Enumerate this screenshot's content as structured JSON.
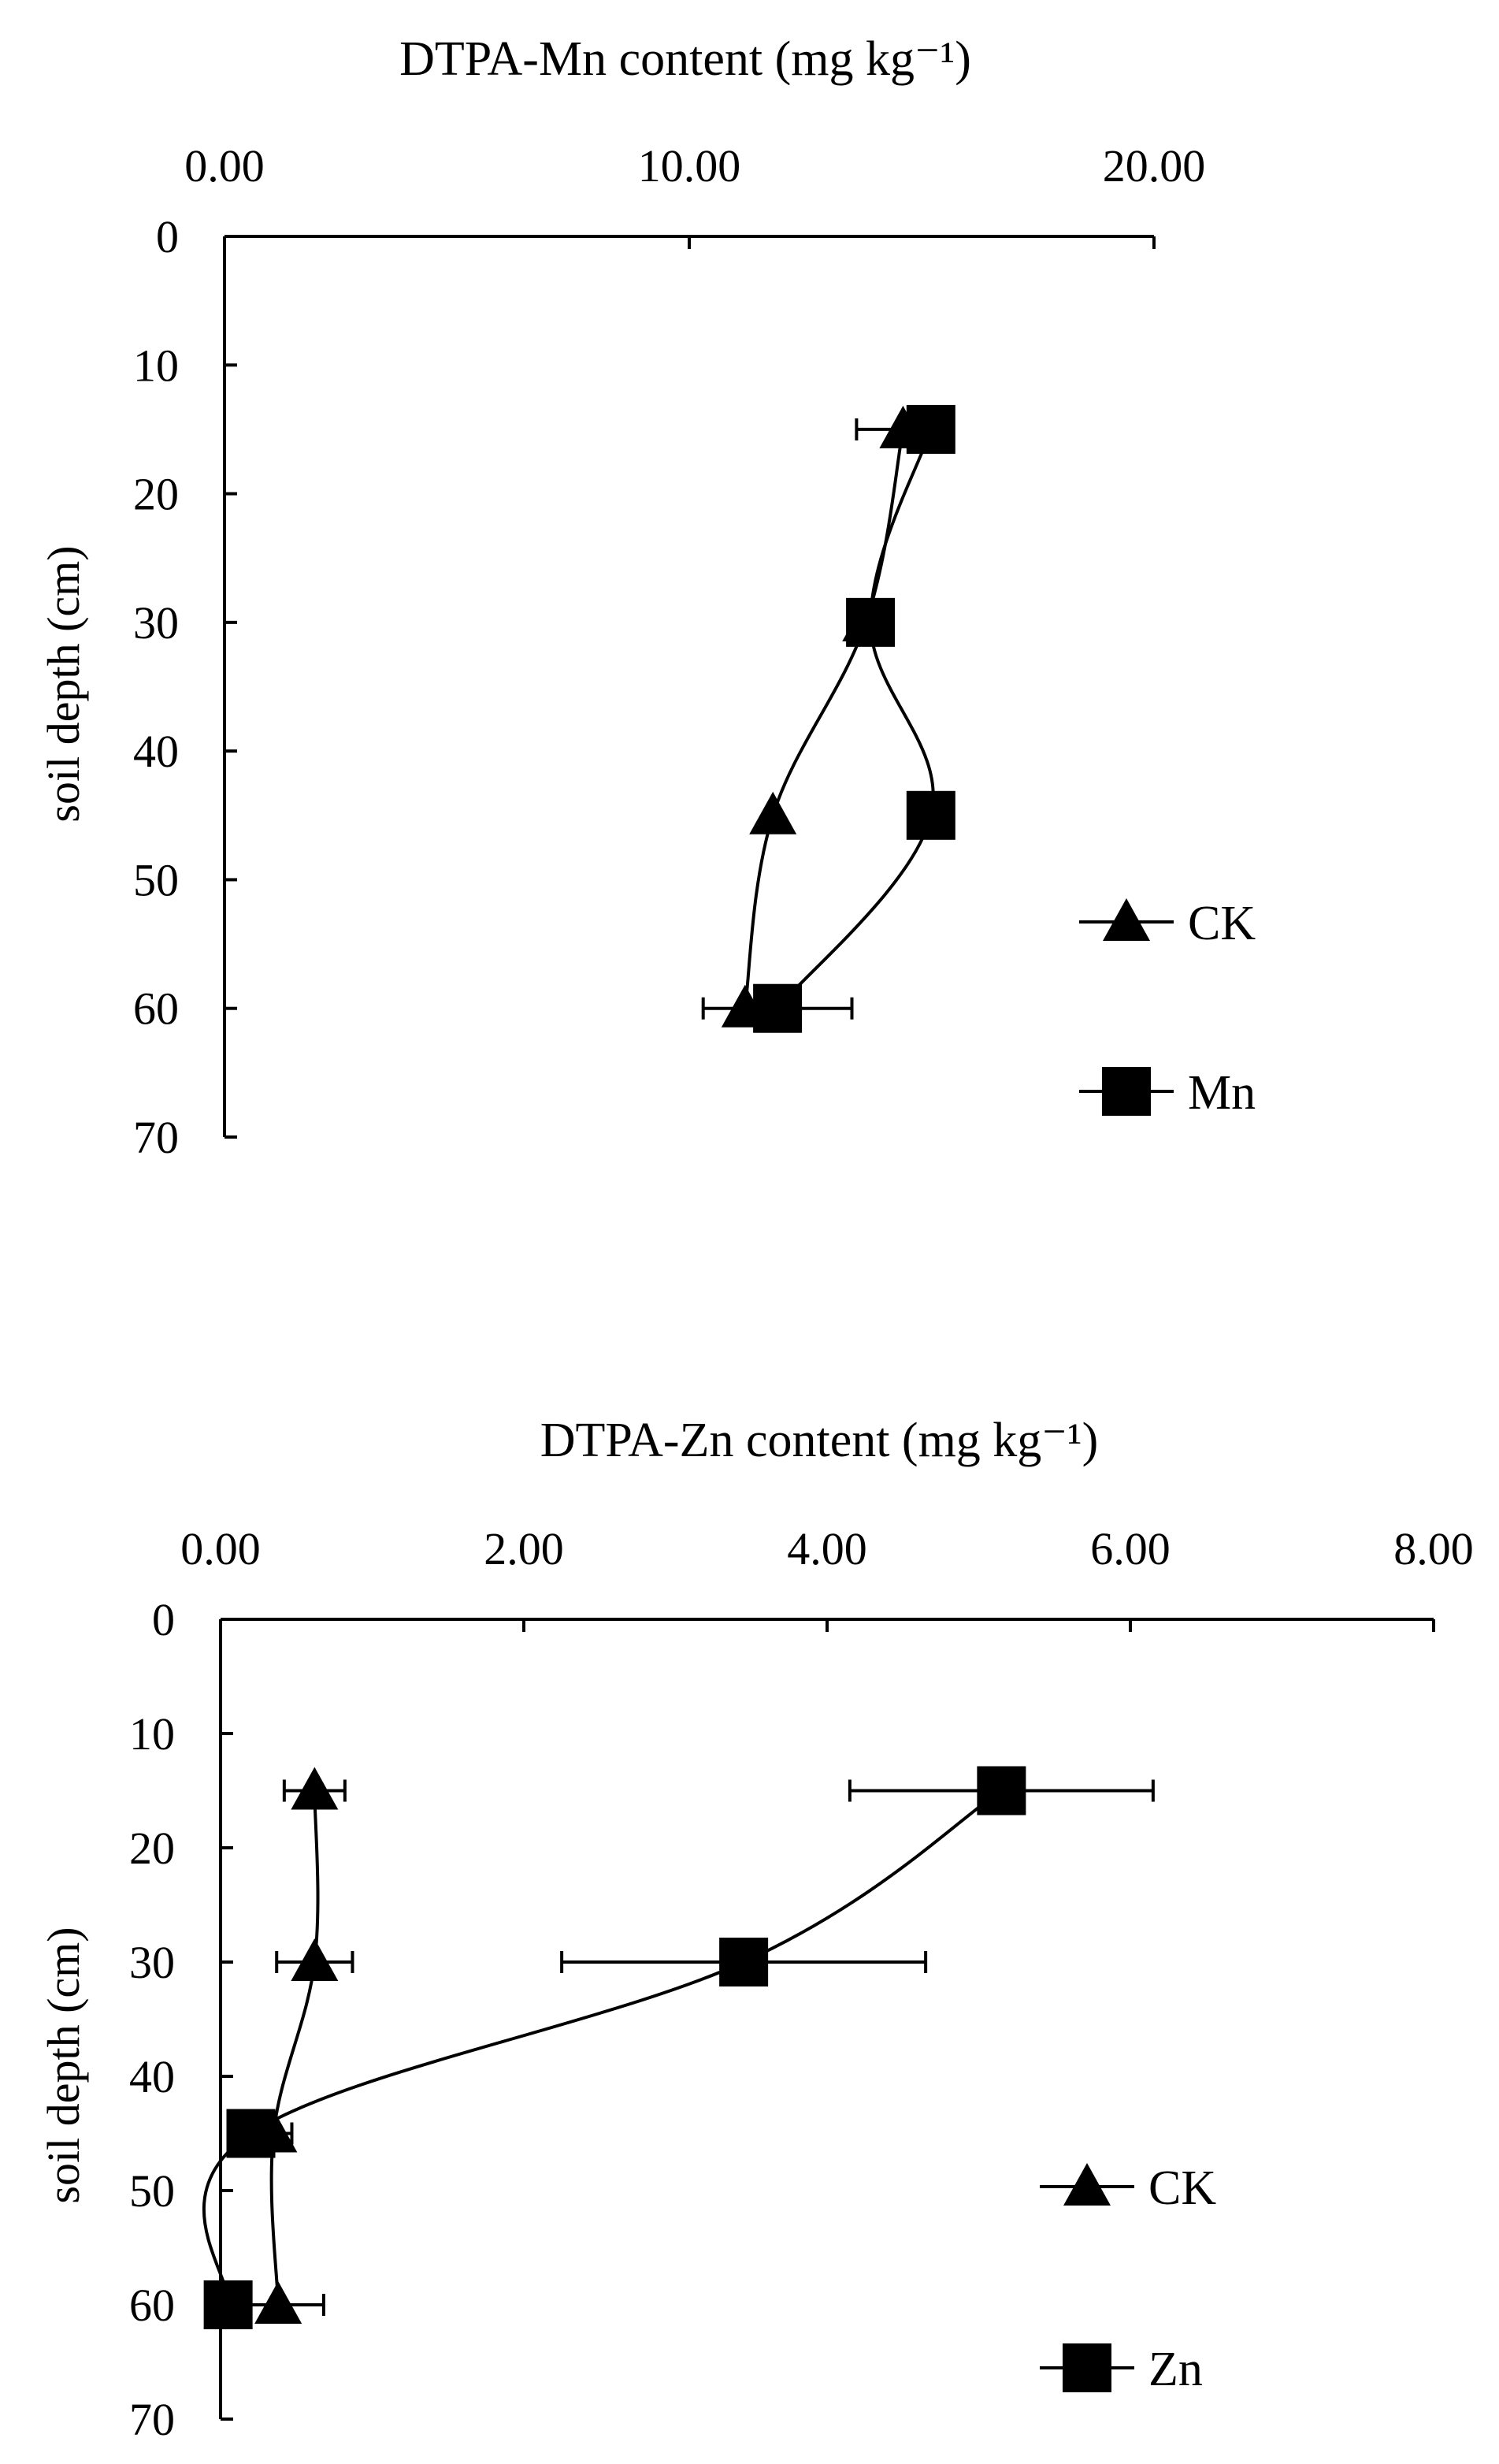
{
  "chart_data": [
    {
      "type": "line",
      "title": "DTPA-Mn content (mg kg⁻¹)",
      "xlabel": "DTPA-Mn content (mg kg⁻¹)",
      "ylabel": "soil depth (cm)",
      "x_axis_position": "top",
      "y_axis_inverted": true,
      "xlim": [
        0,
        20
      ],
      "ylim": [
        0,
        70
      ],
      "xticks": [
        "0.00",
        "10.00",
        "20.00"
      ],
      "xtick_values": [
        0,
        10,
        20
      ],
      "yticks": [
        "0",
        "10",
        "20",
        "30",
        "40",
        "50",
        "60",
        "70"
      ],
      "ytick_values": [
        0,
        10,
        20,
        30,
        40,
        50,
        60,
        70
      ],
      "grid": false,
      "legend_position": "right",
      "series": [
        {
          "name": "CK",
          "marker": "triangle",
          "depth": [
            15,
            30,
            45,
            60
          ],
          "values": [
            14.6,
            13.8,
            11.8,
            11.2
          ],
          "error": [
            1.0,
            0,
            0,
            0
          ]
        },
        {
          "name": "Mn",
          "marker": "square",
          "depth": [
            15,
            30,
            45,
            60
          ],
          "values": [
            15.2,
            13.9,
            15.2,
            11.9
          ],
          "error": [
            0,
            0,
            0,
            1.6
          ]
        }
      ]
    },
    {
      "type": "line",
      "title": "DTPA-Zn content (mg kg⁻¹)",
      "xlabel": "DTPA-Zn content (mg kg⁻¹)",
      "ylabel": "soil depth (cm)",
      "x_axis_position": "top",
      "y_axis_inverted": true,
      "xlim": [
        0,
        8
      ],
      "ylim": [
        0,
        70
      ],
      "xticks": [
        "0.00",
        "2.00",
        "4.00",
        "6.00",
        "8.00"
      ],
      "xtick_values": [
        0,
        2,
        4,
        6,
        8
      ],
      "yticks": [
        "0",
        "10",
        "20",
        "30",
        "40",
        "50",
        "60",
        "70"
      ],
      "ytick_values": [
        0,
        10,
        20,
        30,
        40,
        50,
        60,
        70
      ],
      "grid": false,
      "legend_position": "right",
      "series": [
        {
          "name": "CK",
          "marker": "triangle",
          "depth": [
            15,
            30,
            45,
            60
          ],
          "values": [
            0.62,
            0.62,
            0.35,
            0.38
          ],
          "error": [
            0.2,
            0.25,
            0.12,
            0.3
          ]
        },
        {
          "name": "Zn",
          "marker": "square",
          "depth": [
            15,
            30,
            45,
            60
          ],
          "values": [
            5.15,
            3.45,
            0.2,
            0.05
          ],
          "error": [
            1.0,
            1.2,
            0,
            0
          ]
        }
      ]
    }
  ]
}
